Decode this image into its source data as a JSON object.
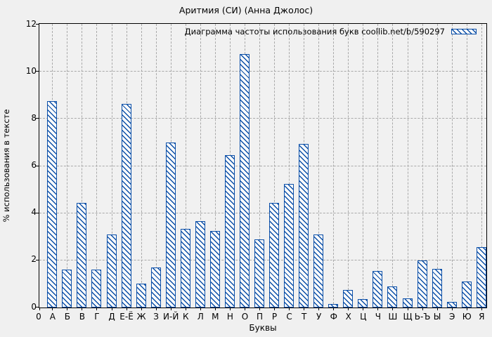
{
  "title": "Аритмия (СИ) (Анна Джолос)",
  "legend": {
    "label": "Диаграмма частоты использования букв coollib.net/b/590297"
  },
  "axes": {
    "y_label": "% использования в тексте",
    "x_label": "Буквы",
    "x_origin_label": "0",
    "y_ticks": [
      0,
      2,
      4,
      6,
      8,
      10,
      12
    ]
  },
  "colors": {
    "bar_line": "#0b4fa8",
    "bar_fill": "#fbfbfb",
    "grid": "#a9a9a9",
    "axis": "#000000",
    "background": "#f0f0f0"
  },
  "chart_data": {
    "type": "bar",
    "title": "Аритмия (СИ) (Анна Джолос)",
    "xlabel": "Буквы",
    "ylabel": "% использования в тексте",
    "ylim": [
      0,
      12
    ],
    "grid": true,
    "legend_position": "top-right-inside",
    "legend_label": "Диаграмма частоты использования букв coollib.net/b/590297",
    "bar_style": "blue diagonal hatch",
    "categories": [
      "А",
      "Б",
      "В",
      "Г",
      "Д",
      "Е-Ё",
      "Ж",
      "З",
      "И-Й",
      "К",
      "Л",
      "М",
      "Н",
      "О",
      "П",
      "Р",
      "С",
      "Т",
      "У",
      "Ф",
      "Х",
      "Ц",
      "Ч",
      "Ш",
      "Щ",
      "Ь-Ъ",
      "Ы",
      "Э",
      "Ю",
      "Я"
    ],
    "values": [
      8.75,
      1.6,
      4.45,
      1.6,
      3.1,
      8.65,
      1.0,
      1.7,
      7.0,
      3.35,
      3.65,
      3.25,
      6.45,
      10.75,
      2.9,
      4.45,
      5.25,
      6.95,
      3.1,
      0.15,
      0.75,
      0.35,
      1.55,
      0.9,
      0.4,
      2.0,
      1.65,
      0.25,
      1.1,
      2.55
    ]
  }
}
